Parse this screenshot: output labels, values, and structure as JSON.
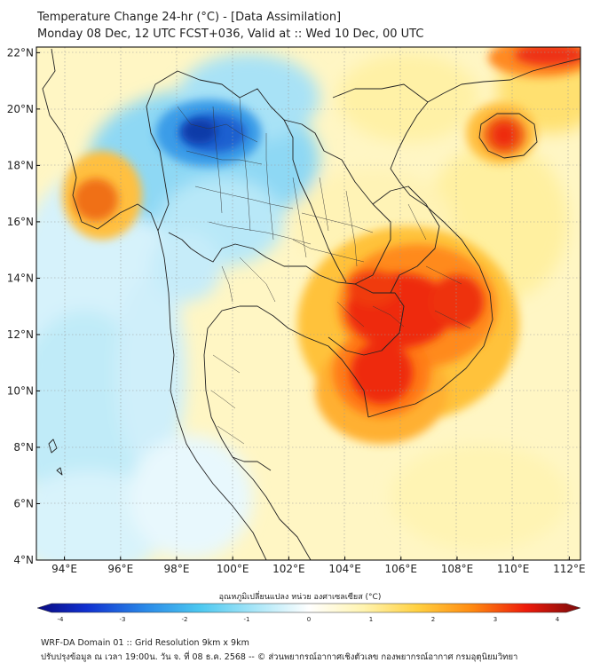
{
  "title": {
    "line1": "Temperature Change 24-hr (°C) - [Data Assimilation]",
    "line2": "Monday 08 Dec, 12 UTC FCST+036, Valid at :: Wed 10 Dec, 00 UTC"
  },
  "map": {
    "lat_ticks": [
      "22°N",
      "20°N",
      "18°N",
      "16°N",
      "14°N",
      "12°N",
      "10°N",
      "8°N",
      "6°N",
      "4°N"
    ],
    "lon_ticks": [
      "94°E",
      "96°E",
      "98°E",
      "100°E",
      "102°E",
      "104°E",
      "106°E",
      "108°E",
      "110°E",
      "112°E"
    ],
    "extent": {
      "lon_min": 93.0,
      "lon_max": 112.4,
      "lat_min": 4.0,
      "lat_max": 22.2
    }
  },
  "colorbar": {
    "title": "อุณหภูมิเปลี่ยนแปลง หน่วย องศาเซลเซียส (°C)",
    "ticks": [
      "-4",
      "-3",
      "-2",
      "-1",
      "0",
      "1",
      "2",
      "3",
      "4"
    ],
    "min": -4,
    "max": 4
  },
  "footer": {
    "line1": "WRF-DA Domain 01 :: Grid Resolution 9km x 9km",
    "line2": "ปรับปรุงข้อมูล ณ เวลา 19:00น. วัน จ. ที่ 08 ธ.ค. 2568 -- © ส่วนพยากรณ์อากาศเชิงตัวเลข กองพยากรณ์อากาศ กรมอุตุนิยมวิทยา"
  },
  "colors": {
    "cold_extreme": "#0a1a8a",
    "cold": "#1e6fd8",
    "cool": "#5ec8f0",
    "neutral": "#ffffff",
    "warm": "#ffe680",
    "hot": "#f08010",
    "hot_extreme": "#e81010"
  }
}
